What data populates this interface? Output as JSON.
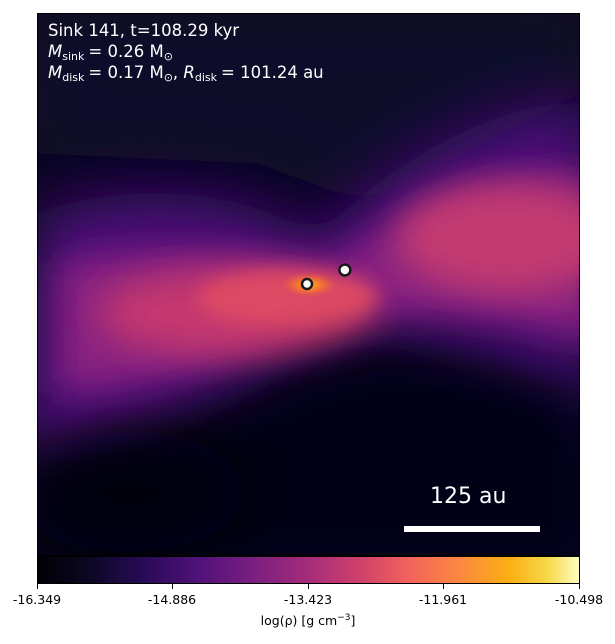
{
  "title": {
    "line1": "Sink 141, t=108.29 kyr",
    "m_sink_symbol": "M",
    "m_sink_sub": "sink",
    "m_sink_value": "= 0.26 M",
    "m_sink_unit_sub": "⊙",
    "m_disk_symbol": "M",
    "m_disk_sub": "disk",
    "m_disk_value": "= 0.17 M",
    "m_disk_unit_sub": "⊙",
    "sep": ",",
    "r_disk_symbol": "R",
    "r_disk_sub": "disk",
    "r_disk_value": "= 101.24 au"
  },
  "scale_bar": {
    "label": "125 au"
  },
  "colorbar": {
    "ticks": [
      "-16.349",
      "-14.886",
      "-13.423",
      "-11.961",
      "-10.498"
    ],
    "label_main": "log(ρ) [g cm",
    "label_exp": "−3",
    "label_close": "]",
    "colormap": "inferno"
  },
  "colors": {
    "sink_marker": "#ffffff",
    "sink_edge": "#1a1a1a"
  }
}
